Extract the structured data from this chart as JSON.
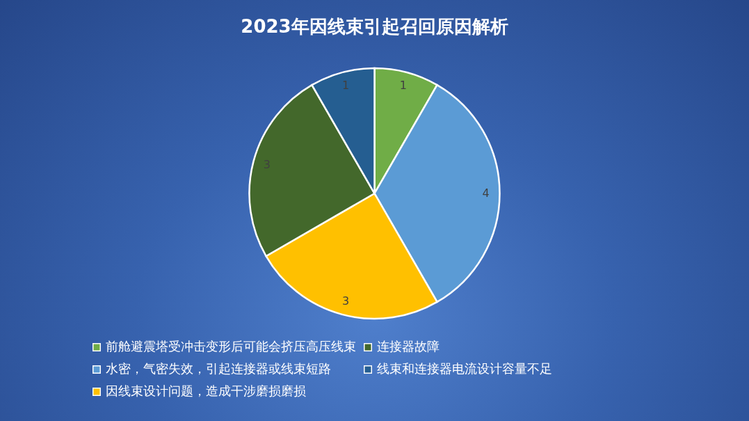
{
  "chart_data": {
    "type": "pie",
    "title": "2023年因线束引起召回原因解析",
    "categories": [
      "前舱避震塔受冲击变形后可能会挤压高压线束",
      "水密，气密失效，引起连接器或线束短路",
      "因线束设计问题，造成干涉磨损磨损",
      "连接器故障",
      "线束和连接器电流设计容量不足"
    ],
    "values": [
      1,
      4,
      3,
      3,
      1
    ],
    "colors": [
      "#70ad47",
      "#5b9bd5",
      "#ffc000",
      "#43682b",
      "#255e91"
    ],
    "data_labels": true,
    "legend": "bottom"
  }
}
